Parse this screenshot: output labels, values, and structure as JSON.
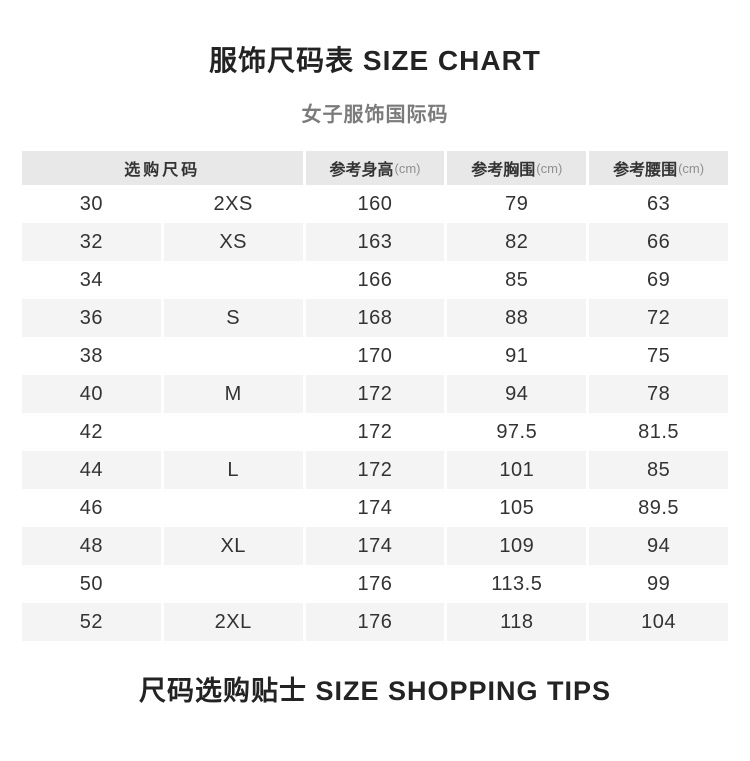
{
  "page": {
    "title": "服饰尺码表 SIZE CHART",
    "subtitle": "女子服饰国际码",
    "footer": "尺码选购贴士 SIZE SHOPPING TIPS"
  },
  "colors": {
    "header_bg": "#e8e8e8",
    "stripe_bg": "#f4f4f4",
    "title_text": "#232323",
    "subtitle_text": "#7b7b7b",
    "cell_text": "#333333",
    "unit_text": "#8f8f8f"
  },
  "chart_data": {
    "type": "table",
    "title": "服饰尺码表 SIZE CHART",
    "subtitle": "女子服饰国际码",
    "footer": "尺码选购贴士 SIZE SHOPPING TIPS",
    "header": {
      "size_group": "选购尺码",
      "cols": [
        {
          "label": "参考身高",
          "unit": "(cm)"
        },
        {
          "label": "参考胸围",
          "unit": "(cm)"
        },
        {
          "label": "参考腰围",
          "unit": "(cm)"
        }
      ]
    },
    "rows": [
      {
        "num": "30",
        "letter": "2XS",
        "height": "160",
        "bust": "79",
        "waist": "63"
      },
      {
        "num": "32",
        "letter": "XS",
        "height": "163",
        "bust": "82",
        "waist": "66"
      },
      {
        "num": "34",
        "letter": "",
        "height": "166",
        "bust": "85",
        "waist": "69"
      },
      {
        "num": "36",
        "letter": "S",
        "height": "168",
        "bust": "88",
        "waist": "72"
      },
      {
        "num": "38",
        "letter": "",
        "height": "170",
        "bust": "91",
        "waist": "75"
      },
      {
        "num": "40",
        "letter": "M",
        "height": "172",
        "bust": "94",
        "waist": "78"
      },
      {
        "num": "42",
        "letter": "",
        "height": "172",
        "bust": "97.5",
        "waist": "81.5"
      },
      {
        "num": "44",
        "letter": "L",
        "height": "172",
        "bust": "101",
        "waist": "85"
      },
      {
        "num": "46",
        "letter": "",
        "height": "174",
        "bust": "105",
        "waist": "89.5"
      },
      {
        "num": "48",
        "letter": "XL",
        "height": "174",
        "bust": "109",
        "waist": "94"
      },
      {
        "num": "50",
        "letter": "",
        "height": "176",
        "bust": "113.5",
        "waist": "99"
      },
      {
        "num": "52",
        "letter": "2XL",
        "height": "176",
        "bust": "118",
        "waist": "104"
      }
    ]
  }
}
